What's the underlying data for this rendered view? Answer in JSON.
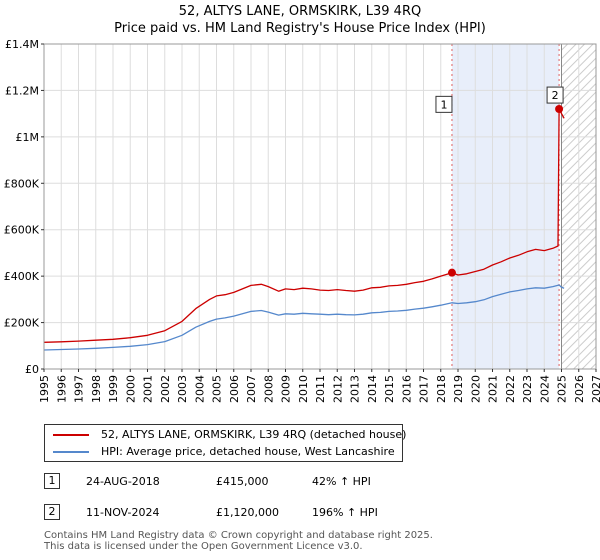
{
  "chart_data": {
    "type": "line",
    "title": "52, ALTYS LANE, ORMSKIRK, L39 4RQ",
    "subtitle": "Price paid vs. HM Land Registry's House Price Index (HPI)",
    "xlim": [
      1995,
      2027
    ],
    "ylim": [
      0,
      1400000
    ],
    "x_ticks": [
      "1995",
      "1996",
      "1997",
      "1998",
      "1999",
      "2000",
      "2001",
      "2002",
      "2003",
      "2004",
      "2005",
      "2006",
      "2007",
      "2008",
      "2009",
      "2010",
      "2011",
      "2012",
      "2013",
      "2014",
      "2015",
      "2016",
      "2017",
      "2018",
      "2019",
      "2020",
      "2021",
      "2022",
      "2023",
      "2024",
      "2025",
      "2026",
      "2027"
    ],
    "y_ticks": [
      {
        "value": 0,
        "label": "£0"
      },
      {
        "value": 200000,
        "label": "£200K"
      },
      {
        "value": 400000,
        "label": "£400K"
      },
      {
        "value": 600000,
        "label": "£600K"
      },
      {
        "value": 800000,
        "label": "£800K"
      },
      {
        "value": 1000000,
        "label": "£1M"
      },
      {
        "value": 1200000,
        "label": "£1.2M"
      },
      {
        "value": 1400000,
        "label": "£1.4M"
      }
    ],
    "grid": true,
    "shaded_period": [
      2018.65,
      2024.86
    ],
    "hatched_future_from": 2025.0,
    "series": [
      {
        "name": "52, ALTYS LANE, ORMSKIRK, L39 4RQ (detached house)",
        "color": "#cc0000",
        "x": [
          1995,
          1996,
          1997,
          1998,
          1999,
          2000,
          2001,
          2002,
          2003,
          2003.8,
          2004.6,
          2005,
          2005.5,
          2006,
          2006.5,
          2007,
          2007.6,
          2008,
          2008.6,
          2009,
          2009.5,
          2010,
          2010.5,
          2011,
          2011.5,
          2012,
          2012.5,
          2013,
          2013.5,
          2014,
          2014.5,
          2015,
          2015.5,
          2016,
          2016.5,
          2017,
          2017.5,
          2018,
          2018.65,
          2019,
          2019.5,
          2020,
          2020.5,
          2021,
          2021.5,
          2022,
          2022.5,
          2023,
          2023.5,
          2024,
          2024.5,
          2024.8,
          2024.86,
          2025,
          2025.15
        ],
        "y": [
          115000,
          117000,
          120000,
          124000,
          128000,
          135000,
          145000,
          165000,
          205000,
          260000,
          300000,
          315000,
          320000,
          330000,
          345000,
          360000,
          365000,
          355000,
          335000,
          345000,
          342000,
          348000,
          345000,
          340000,
          338000,
          342000,
          338000,
          335000,
          340000,
          350000,
          352000,
          358000,
          360000,
          365000,
          372000,
          378000,
          388000,
          400000,
          415000,
          405000,
          410000,
          420000,
          430000,
          448000,
          462000,
          478000,
          490000,
          505000,
          515000,
          510000,
          520000,
          530000,
          1120000,
          1100000,
          1080000
        ]
      },
      {
        "name": "HPI: Average price, detached house, West Lancashire",
        "color": "#5588cc",
        "x": [
          1995,
          1996,
          1997,
          1998,
          1999,
          2000,
          2001,
          2002,
          2003,
          2003.8,
          2004.6,
          2005,
          2005.5,
          2006,
          2006.5,
          2007,
          2007.6,
          2008,
          2008.6,
          2009,
          2009.5,
          2010,
          2010.5,
          2011,
          2011.5,
          2012,
          2012.5,
          2013,
          2013.5,
          2014,
          2014.5,
          2015,
          2015.5,
          2016,
          2016.5,
          2017,
          2017.5,
          2018,
          2018.65,
          2019,
          2019.5,
          2020,
          2020.5,
          2021,
          2021.5,
          2022,
          2022.5,
          2023,
          2023.5,
          2024,
          2024.5,
          2024.86,
          2025,
          2025.15
        ],
        "y": [
          82000,
          84000,
          86000,
          89000,
          93000,
          98000,
          105000,
          118000,
          145000,
          180000,
          205000,
          215000,
          220000,
          228000,
          238000,
          248000,
          252000,
          245000,
          232000,
          238000,
          236000,
          240000,
          238000,
          236000,
          234000,
          236000,
          234000,
          233000,
          236000,
          242000,
          244000,
          248000,
          250000,
          253000,
          258000,
          262000,
          268000,
          275000,
          285000,
          282000,
          285000,
          290000,
          298000,
          312000,
          322000,
          332000,
          338000,
          345000,
          350000,
          348000,
          355000,
          362000,
          352000,
          348000
        ]
      }
    ],
    "annotations": [
      {
        "label": "1",
        "x": 2018.65,
        "y": 415000,
        "badge_value": 1140000
      },
      {
        "label": "2",
        "x": 2024.86,
        "y": 1120000,
        "badge_value": 1180000
      }
    ]
  },
  "legend": {
    "property_label": "52, ALTYS LANE, ORMSKIRK, L39 4RQ (detached house)",
    "hpi_label": "HPI: Average price, detached house, West Lancashire",
    "property_color": "#cc0000",
    "hpi_color": "#5588cc"
  },
  "transactions": [
    {
      "num": "1",
      "date": "24-AUG-2018",
      "price": "£415,000",
      "hpi": "42% ↑ HPI"
    },
    {
      "num": "2",
      "date": "11-NOV-2024",
      "price": "£1,120,000",
      "hpi": "196% ↑ HPI"
    }
  ],
  "footer": {
    "line1": "Contains HM Land Registry data © Crown copyright and database right 2025.",
    "line2": "This data is licensed under the Open Government Licence v3.0."
  }
}
